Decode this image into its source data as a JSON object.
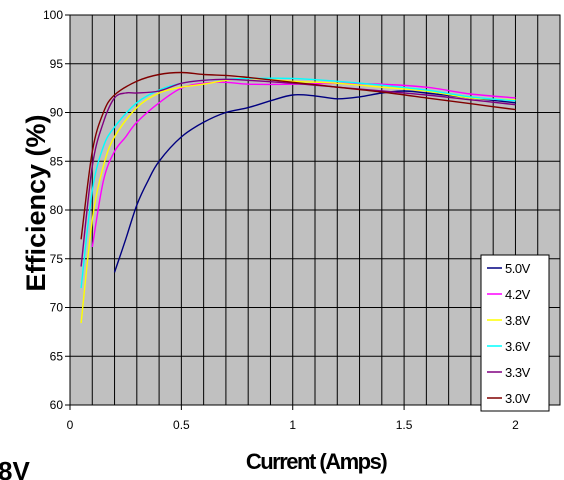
{
  "chart_data": {
    "type": "line",
    "title": "",
    "xlabel": "Current (Amps)",
    "ylabel": "Efficiency (%)",
    "xlim": [
      0,
      2.2
    ],
    "ylim": [
      60,
      100
    ],
    "x_ticks": [
      0,
      0.5,
      1,
      1.5,
      2
    ],
    "x_tick_labels": [
      "0",
      "0.5",
      "1",
      "1.5",
      "2"
    ],
    "y_ticks": [
      60,
      65,
      70,
      75,
      80,
      85,
      90,
      95,
      100
    ],
    "grid": true,
    "legend_position": "bottom-right",
    "series": [
      {
        "name": "5.0V",
        "color": "#000080",
        "points": [
          [
            0.2,
            73.6
          ],
          [
            0.25,
            77
          ],
          [
            0.3,
            80.5
          ],
          [
            0.35,
            83
          ],
          [
            0.4,
            85
          ],
          [
            0.5,
            87.5
          ],
          [
            0.6,
            89
          ],
          [
            0.7,
            90
          ],
          [
            0.8,
            90.5
          ],
          [
            0.9,
            91.2
          ],
          [
            1.0,
            91.8
          ],
          [
            1.1,
            91.7
          ],
          [
            1.2,
            91.4
          ],
          [
            1.3,
            91.6
          ],
          [
            1.4,
            92
          ],
          [
            1.5,
            92.2
          ],
          [
            1.6,
            92
          ],
          [
            1.8,
            91.5
          ],
          [
            2.0,
            91.0
          ]
        ]
      },
      {
        "name": "4.2V",
        "color": "#ff00ff",
        "points": [
          [
            0.1,
            76.2
          ],
          [
            0.15,
            83
          ],
          [
            0.2,
            86
          ],
          [
            0.25,
            87.5
          ],
          [
            0.3,
            89
          ],
          [
            0.4,
            91
          ],
          [
            0.5,
            92.5
          ],
          [
            0.6,
            93
          ],
          [
            0.7,
            93.1
          ],
          [
            0.8,
            92.9
          ],
          [
            1.0,
            92.9
          ],
          [
            1.2,
            93
          ],
          [
            1.4,
            92.9
          ],
          [
            1.6,
            92.6
          ],
          [
            1.8,
            91.9
          ],
          [
            2.0,
            91.5
          ]
        ]
      },
      {
        "name": "3.8V",
        "color": "#ffff00",
        "points": [
          [
            0.05,
            68.4
          ],
          [
            0.1,
            79
          ],
          [
            0.15,
            84.5
          ],
          [
            0.2,
            87.5
          ],
          [
            0.3,
            90.5
          ],
          [
            0.4,
            92
          ],
          [
            0.5,
            92.6
          ],
          [
            0.6,
            92.9
          ],
          [
            0.7,
            93.3
          ],
          [
            0.8,
            93.5
          ],
          [
            1.0,
            93.2
          ],
          [
            1.2,
            93
          ],
          [
            1.4,
            92.6
          ],
          [
            1.6,
            92.2
          ],
          [
            1.8,
            91.5
          ],
          [
            2.0,
            91.3
          ]
        ]
      },
      {
        "name": "3.6V",
        "color": "#00ffff",
        "points": [
          [
            0.05,
            72
          ],
          [
            0.1,
            82
          ],
          [
            0.15,
            86.5
          ],
          [
            0.2,
            88.5
          ],
          [
            0.3,
            91
          ],
          [
            0.4,
            92.3
          ],
          [
            0.5,
            93
          ],
          [
            0.6,
            93.3
          ],
          [
            0.7,
            93.4
          ],
          [
            0.8,
            93.5
          ],
          [
            1.0,
            93.5
          ],
          [
            1.2,
            93.2
          ],
          [
            1.4,
            92.8
          ],
          [
            1.6,
            92.3
          ],
          [
            1.8,
            91.6
          ],
          [
            2.0,
            91.2
          ]
        ]
      },
      {
        "name": "3.3V",
        "color": "#800080",
        "points": [
          [
            0.05,
            74.2
          ],
          [
            0.1,
            84.5
          ],
          [
            0.15,
            89
          ],
          [
            0.2,
            91.5
          ],
          [
            0.25,
            92
          ],
          [
            0.3,
            92
          ],
          [
            0.4,
            92.2
          ],
          [
            0.5,
            93
          ],
          [
            0.6,
            93.3
          ],
          [
            0.7,
            93.4
          ],
          [
            0.8,
            93.3
          ],
          [
            1.0,
            93
          ],
          [
            1.2,
            92.6
          ],
          [
            1.4,
            92.2
          ],
          [
            1.6,
            91.8
          ],
          [
            1.8,
            91.3
          ],
          [
            2.0,
            90.8
          ]
        ]
      },
      {
        "name": "3.0V",
        "color": "#800000",
        "points": [
          [
            0.05,
            77
          ],
          [
            0.1,
            86
          ],
          [
            0.15,
            90
          ],
          [
            0.2,
            91.8
          ],
          [
            0.3,
            93.2
          ],
          [
            0.4,
            93.9
          ],
          [
            0.5,
            94.1
          ],
          [
            0.6,
            93.9
          ],
          [
            0.7,
            93.8
          ],
          [
            0.8,
            93.6
          ],
          [
            1.0,
            93.1
          ],
          [
            1.2,
            92.6
          ],
          [
            1.4,
            92.1
          ],
          [
            1.6,
            91.5
          ],
          [
            1.8,
            90.9
          ],
          [
            2.0,
            90.3
          ]
        ]
      }
    ]
  },
  "corner_fragment": "8V"
}
